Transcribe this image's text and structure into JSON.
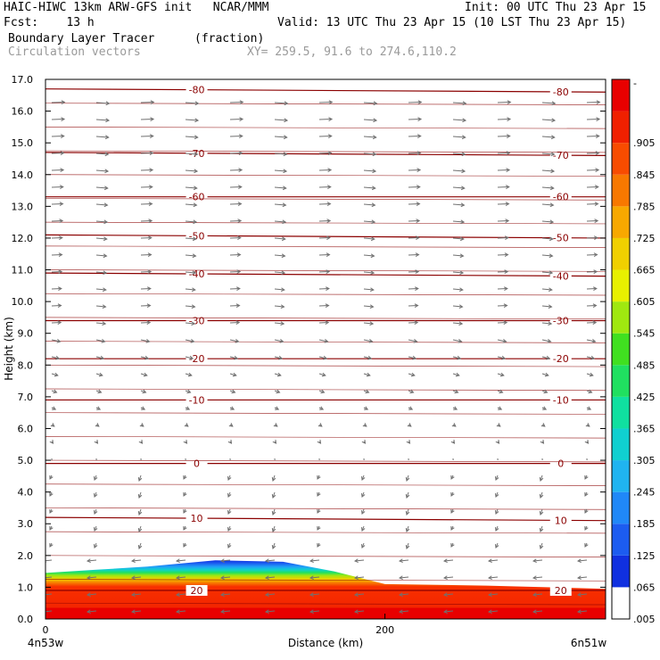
{
  "header": {
    "line1_left": "HAIC-HIWC 13km ARW-GFS init   NCAR/MMM",
    "line1_right": "Init: 00 UTC Thu 23 Apr 15",
    "line2_left": "Fcst:    13 h",
    "line2_right": "Valid: 13 UTC Thu 23 Apr 15 (10 LST Thu 23 Apr 15)",
    "field_name": "Boundary Layer Tracer",
    "field_units": "(fraction)",
    "vector_name": "Circulation vectors",
    "xy_text": "XY= 259.5, 91.6 to 274.6,110.2"
  },
  "colors": {
    "contour": "#8b0000",
    "arrow": "#707070",
    "colorbar": [
      "#ffffff",
      "#1030e0",
      "#1c5cf0",
      "#2088f8",
      "#20b4f0",
      "#10d0d0",
      "#10e0a0",
      "#20e060",
      "#40e020",
      "#a0e810",
      "#e8f000",
      "#f0d000",
      "#f8a800",
      "#f87800",
      "#f84c00",
      "#f02000",
      "#e80000"
    ]
  },
  "chart_data": {
    "type": "heatmap",
    "title": "Boundary Layer Tracer",
    "units": "(fraction)",
    "xlabel": "Distance (km)",
    "ylabel": "Height (km)",
    "xlim": [
      0,
      330
    ],
    "ylim": [
      0,
      17
    ],
    "x_ticks": [
      {
        "value": 0,
        "label": "0"
      },
      {
        "value": 200,
        "label": "200"
      }
    ],
    "x_end_labels": {
      "left": "4n53w",
      "right": "6n51w"
    },
    "y_ticks": [
      "0.0",
      "1.0",
      "2.0",
      "3.0",
      "4.0",
      "5.0",
      "6.0",
      "7.0",
      "8.0",
      "9.0",
      "10.0",
      "11.0",
      "12.0",
      "13.0",
      "14.0",
      "15.0",
      "16.0",
      "17.0"
    ],
    "colorbar_levels": [
      ".005",
      ".065",
      ".125",
      ".185",
      ".245",
      ".305",
      ".365",
      ".425",
      ".485",
      ".545",
      ".605",
      ".665",
      ".725",
      ".785",
      ".845",
      ".905",
      "-"
    ],
    "boundary_layer_top_km": [
      {
        "x": 0,
        "top": 1.45
      },
      {
        "x": 30,
        "top": 1.55
      },
      {
        "x": 60,
        "top": 1.65
      },
      {
        "x": 100,
        "top": 1.85
      },
      {
        "x": 140,
        "top": 1.8
      },
      {
        "x": 170,
        "top": 1.5
      },
      {
        "x": 200,
        "top": 1.1
      },
      {
        "x": 260,
        "top": 1.05
      },
      {
        "x": 330,
        "top": 0.95
      }
    ],
    "temperature_contours": [
      {
        "label": "-80",
        "y_left": 16.7,
        "y_right": 16.6
      },
      {
        "label": "-70",
        "y_left": 14.7,
        "y_right": 14.6
      },
      {
        "label": "-60",
        "y_left": 13.3,
        "y_right": 13.3
      },
      {
        "label": "-50",
        "y_left": 12.1,
        "y_right": 12.0
      },
      {
        "label": "-40",
        "y_left": 10.9,
        "y_right": 10.8
      },
      {
        "label": "-30",
        "y_left": 9.4,
        "y_right": 9.4
      },
      {
        "label": "-20",
        "y_left": 8.2,
        "y_right": 8.2
      },
      {
        "label": "-10",
        "y_left": 6.9,
        "y_right": 6.9
      },
      {
        "label": "0",
        "y_left": 4.9,
        "y_right": 4.9
      },
      {
        "label": "10",
        "y_left": 3.2,
        "y_right": 3.1
      },
      {
        "label": "20",
        "y_left": 0.9,
        "y_right": 0.9
      }
    ],
    "grid": false
  }
}
